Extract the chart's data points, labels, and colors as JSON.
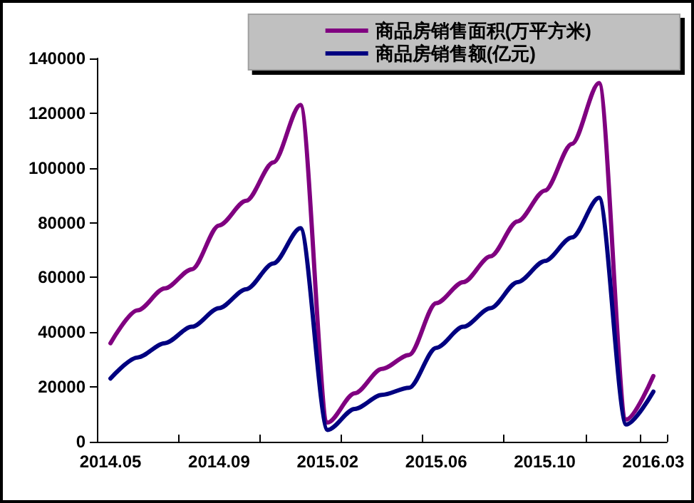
{
  "chart_data": {
    "type": "line",
    "categories": [
      "2014.05",
      null,
      null,
      null,
      "2014.09",
      null,
      null,
      null,
      "2015.02",
      null,
      null,
      null,
      "2015.06",
      null,
      null,
      null,
      "2015.10",
      null,
      null,
      null,
      "2016.03"
    ],
    "series": [
      {
        "name": "商品房销售面积(万平方米)",
        "color": "#800080",
        "values": [
          36000,
          48000,
          56000,
          63000,
          79000,
          88000,
          102000,
          123000,
          7000,
          17700,
          26600,
          31700,
          50600,
          58300,
          67700,
          80500,
          91700,
          108800,
          131000,
          8100,
          24000
        ]
      },
      {
        "name": "商品房销售额(亿元)",
        "color": "#000080",
        "values": [
          23100,
          30800,
          36000,
          42000,
          48800,
          55700,
          65100,
          78000,
          4300,
          12000,
          17100,
          19700,
          34300,
          42000,
          48800,
          58300,
          66000,
          74600,
          89100,
          6300,
          18300
        ]
      }
    ],
    "ylim": [
      0,
      140000
    ],
    "yticks": [
      0,
      20000,
      40000,
      60000,
      80000,
      100000,
      120000,
      140000
    ],
    "grid": false,
    "legend": "top right",
    "marker": "none",
    "line_style": "solid"
  }
}
